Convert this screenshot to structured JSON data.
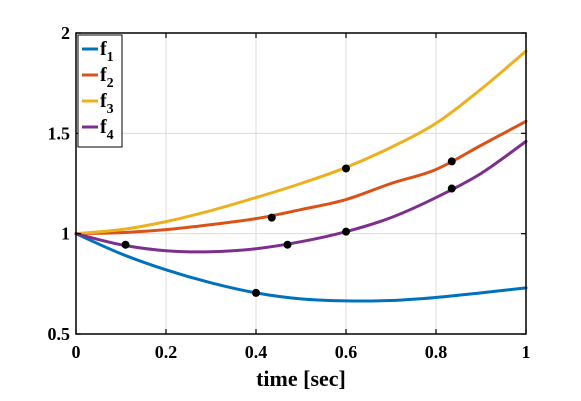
{
  "chart_data": {
    "type": "line",
    "title": "",
    "xlabel": "time [sec]",
    "ylabel": "",
    "xlim": [
      0,
      1
    ],
    "ylim": [
      0.5,
      2
    ],
    "xticks": [
      0,
      0.2,
      0.4,
      0.6,
      0.8,
      1
    ],
    "xtick_labels": [
      "0",
      "0.2",
      "0.4",
      "0.6",
      "0.8",
      "1"
    ],
    "yticks": [
      0.5,
      1,
      1.5,
      2
    ],
    "ytick_labels": [
      "0.5",
      "1",
      "1.5",
      "2"
    ],
    "grid": true,
    "legend_position": "top-left",
    "x": [
      0,
      0.1,
      0.2,
      0.3,
      0.4,
      0.5,
      0.6,
      0.7,
      0.8,
      0.9,
      1.0
    ],
    "series": [
      {
        "name": "f",
        "subscript": "1",
        "color": "#0072BD",
        "values": [
          1.0,
          0.9,
          0.82,
          0.755,
          0.705,
          0.675,
          0.665,
          0.667,
          0.682,
          0.705,
          0.73
        ],
        "markers": [
          [
            0.4,
            0.705
          ]
        ]
      },
      {
        "name": "f",
        "subscript": "2",
        "color": "#D95319",
        "values": [
          1.0,
          1.005,
          1.02,
          1.045,
          1.075,
          1.12,
          1.17,
          1.25,
          1.32,
          1.44,
          1.56
        ],
        "markers": [
          [
            0.435,
            1.08
          ],
          [
            0.835,
            1.36
          ]
        ]
      },
      {
        "name": "f",
        "subscript": "3",
        "color": "#EDB120",
        "values": [
          1.0,
          1.02,
          1.06,
          1.115,
          1.18,
          1.25,
          1.33,
          1.43,
          1.55,
          1.72,
          1.91
        ],
        "markers": [
          [
            0.6,
            1.325
          ]
        ]
      },
      {
        "name": "f",
        "subscript": "4",
        "color": "#7E2F8E",
        "values": [
          1.0,
          0.945,
          0.915,
          0.91,
          0.925,
          0.96,
          1.01,
          1.08,
          1.18,
          1.3,
          1.46
        ],
        "markers": [
          [
            0.11,
            0.945
          ],
          [
            0.47,
            0.945
          ],
          [
            0.6,
            1.01
          ],
          [
            0.835,
            1.225
          ]
        ]
      }
    ]
  }
}
